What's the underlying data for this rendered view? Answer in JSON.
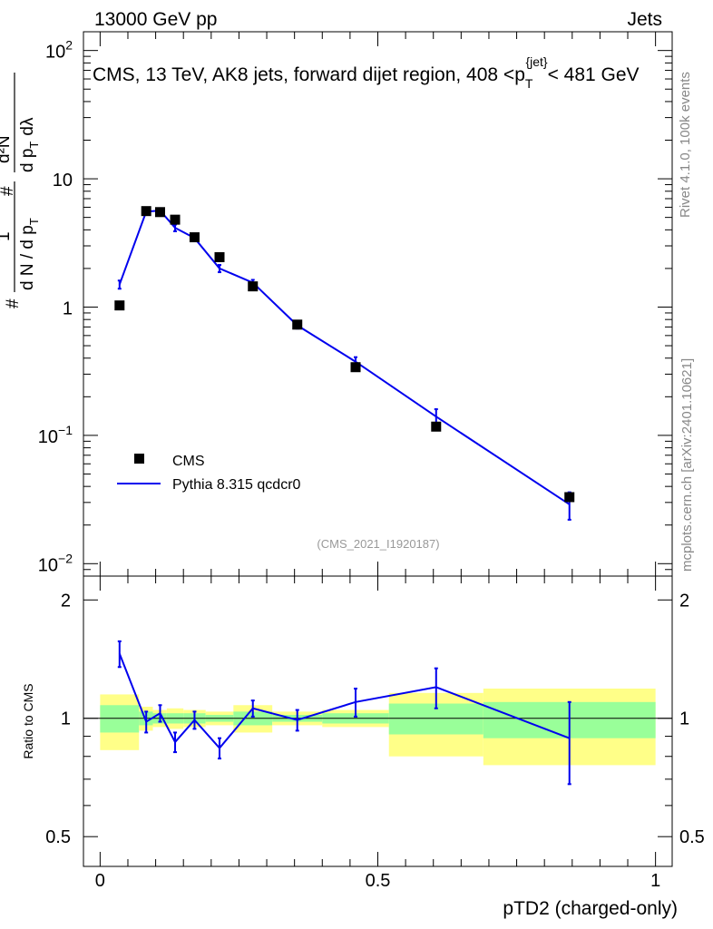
{
  "header": {
    "left": "13000 GeV pp",
    "right": "Jets"
  },
  "side_labels": {
    "rivet": "Rivet 4.1.0,  100k events",
    "mcplots": "mcplots.cern.ch [arXiv:2401.10621]"
  },
  "analysis_id": "(CMS_2021_I1920187)",
  "colors": {
    "data": "#000000",
    "mc": "#0000ee",
    "band_inner": "#99ff99",
    "band_outer": "#ffff88"
  },
  "chart_data": [
    {
      "type": "scatter",
      "title": "CMS, 13 TeV, AK8 jets, forward dijet region, 408 <p_T^{jet}< 481 GeV",
      "title_parts": {
        "pre": "CMS, 13 TeV, AK8 jets, forward dijet region, 408 <p",
        "sub": "T",
        "sup": "{jet}",
        "post": "< 481 GeV"
      },
      "ylabel": "# 1/(dN / dp_T #) d²N/(dp_T dλ)",
      "ylabel_parts": {
        "frac1_num": "1",
        "frac1_den": "d N / d p",
        "frac2_num": "d²N",
        "frac2_den": "d p",
        "sub": "T",
        "hash": "#",
        "lambda": "dλ"
      },
      "yscale": "log",
      "ylim": [
        0.008,
        140
      ],
      "yticks": [
        {
          "value": 0.01,
          "base": "10",
          "exp": "−2"
        },
        {
          "value": 0.1,
          "base": "10",
          "exp": "−1"
        },
        {
          "value": 1,
          "base": "1",
          "exp": ""
        },
        {
          "value": 10,
          "base": "10",
          "exp": ""
        },
        {
          "value": 100,
          "base": "10",
          "exp": "2"
        }
      ],
      "xlim": [
        -0.03,
        1.03
      ],
      "legend_position": "lower-left",
      "series": [
        {
          "name": "CMS",
          "style": "markers",
          "x": [
            0.035,
            0.083,
            0.108,
            0.135,
            0.17,
            0.215,
            0.275,
            0.355,
            0.46,
            0.605,
            0.845
          ],
          "y": [
            1.03,
            5.6,
            5.5,
            4.8,
            3.5,
            2.45,
            1.45,
            0.73,
            0.34,
            0.117,
            0.033
          ]
        },
        {
          "name": "Pythia 8.315 qcdcr0",
          "style": "line",
          "x": [
            0.035,
            0.083,
            0.108,
            0.135,
            0.17,
            0.215,
            0.275,
            0.355,
            0.46,
            0.605,
            0.845
          ],
          "y": [
            1.5,
            5.55,
            5.65,
            4.15,
            3.45,
            2.0,
            1.55,
            0.72,
            0.375,
            0.14,
            0.029
          ],
          "yerr": [
            0.11,
            0.3,
            0.25,
            0.25,
            0.18,
            0.13,
            0.08,
            0.04,
            0.032,
            0.02,
            0.007
          ]
        }
      ]
    },
    {
      "type": "line",
      "ylabel": "Ratio to CMS",
      "xlabel": "pTD2 (charged-only)",
      "ylim": [
        0.42,
        2.3
      ],
      "yticks": [
        0.5,
        1,
        2
      ],
      "xlim": [
        -0.03,
        1.03
      ],
      "xticks": [
        0,
        0.5,
        1
      ],
      "reference_line": 1,
      "bands": [
        {
          "x0": 0.0,
          "x1": 0.07,
          "inner": [
            0.92,
            1.08
          ],
          "outer": [
            0.83,
            1.15
          ]
        },
        {
          "x0": 0.07,
          "x1": 0.095,
          "inner": [
            0.96,
            1.04
          ],
          "outer": [
            0.93,
            1.07
          ]
        },
        {
          "x0": 0.095,
          "x1": 0.12,
          "inner": [
            0.97,
            1.03
          ],
          "outer": [
            0.95,
            1.05
          ]
        },
        {
          "x0": 0.12,
          "x1": 0.15,
          "inner": [
            0.97,
            1.03
          ],
          "outer": [
            0.94,
            1.06
          ]
        },
        {
          "x0": 0.15,
          "x1": 0.19,
          "inner": [
            0.97,
            1.03
          ],
          "outer": [
            0.95,
            1.05
          ]
        },
        {
          "x0": 0.19,
          "x1": 0.24,
          "inner": [
            0.98,
            1.02
          ],
          "outer": [
            0.96,
            1.04
          ]
        },
        {
          "x0": 0.24,
          "x1": 0.31,
          "inner": [
            0.96,
            1.04
          ],
          "outer": [
            0.92,
            1.08
          ]
        },
        {
          "x0": 0.31,
          "x1": 0.4,
          "inner": [
            0.98,
            1.02
          ],
          "outer": [
            0.96,
            1.04
          ]
        },
        {
          "x0": 0.4,
          "x1": 0.52,
          "inner": [
            0.97,
            1.03
          ],
          "outer": [
            0.95,
            1.05
          ]
        },
        {
          "x0": 0.52,
          "x1": 0.69,
          "inner": [
            0.91,
            1.09
          ],
          "outer": [
            0.8,
            1.16
          ]
        },
        {
          "x0": 0.69,
          "x1": 1.0,
          "inner": [
            0.89,
            1.1
          ],
          "outer": [
            0.76,
            1.19
          ]
        }
      ],
      "series": [
        {
          "name": "Pythia 8.315 qcdcr0",
          "x": [
            0.035,
            0.083,
            0.108,
            0.135,
            0.17,
            0.215,
            0.275,
            0.355,
            0.46,
            0.605,
            0.845
          ],
          "y": [
            1.46,
            0.98,
            1.03,
            0.87,
            0.99,
            0.84,
            1.06,
            0.99,
            1.1,
            1.2,
            0.89
          ],
          "yerr": [
            0.11,
            0.06,
            0.05,
            0.05,
            0.05,
            0.05,
            0.05,
            0.06,
            0.09,
            0.14,
            0.21
          ]
        }
      ]
    }
  ]
}
